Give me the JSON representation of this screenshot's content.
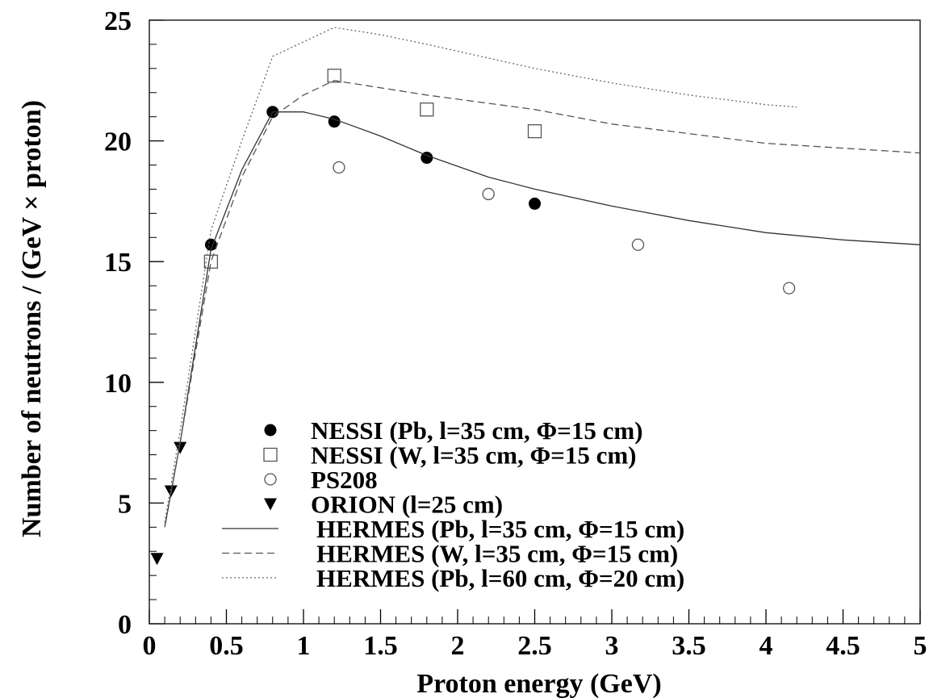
{
  "chart_data": {
    "type": "scatter",
    "xlabel": "Proton energy (GeV)",
    "ylabel": "Number of neutrons / (GeV × proton)",
    "xlim": [
      0,
      5
    ],
    "ylim": [
      0,
      25
    ],
    "x_ticks": [
      0,
      0.5,
      1,
      1.5,
      2,
      2.5,
      3,
      3.5,
      4,
      4.5,
      5
    ],
    "x_tick_labels": [
      "0",
      "0.5",
      "1",
      "1.5",
      "2",
      "2.5",
      "3",
      "3.5",
      "4",
      "4.5",
      "5"
    ],
    "y_ticks": [
      0,
      5,
      10,
      15,
      20,
      25
    ],
    "y_tick_labels": [
      "0",
      "5",
      "10",
      "15",
      "20",
      "25"
    ],
    "grid": false,
    "legend_position": "bottom-center",
    "series": [
      {
        "name": "NESSI (Pb, l=35 cm, Φ=15 cm)",
        "kind": "marker",
        "marker": "filled-circle",
        "points": [
          [
            0.4,
            15.7
          ],
          [
            0.8,
            21.2
          ],
          [
            1.2,
            20.8
          ],
          [
            1.8,
            19.3
          ],
          [
            2.5,
            17.4
          ]
        ]
      },
      {
        "name": "NESSI (W, l=35 cm, Φ=15 cm)",
        "kind": "marker",
        "marker": "open-square",
        "points": [
          [
            0.4,
            15.0
          ],
          [
            1.2,
            22.7
          ],
          [
            1.8,
            21.3
          ],
          [
            2.5,
            20.4
          ]
        ]
      },
      {
        "name": "PS208",
        "kind": "marker",
        "marker": "open-circle",
        "points": [
          [
            1.23,
            18.9
          ],
          [
            2.2,
            17.8
          ],
          [
            3.17,
            15.7
          ],
          [
            4.15,
            13.9
          ]
        ]
      },
      {
        "name": "ORION (l=25 cm)",
        "kind": "marker",
        "marker": "filled-triangle-down",
        "points": [
          [
            0.05,
            2.7
          ],
          [
            0.14,
            5.5
          ],
          [
            0.2,
            7.3
          ]
        ]
      },
      {
        "name": "HERMES (Pb, l=35 cm, Φ=15 cm)",
        "kind": "line",
        "dash": "solid",
        "points": [
          [
            0.1,
            4.0
          ],
          [
            0.2,
            7.5
          ],
          [
            0.4,
            15.5
          ],
          [
            0.6,
            18.8
          ],
          [
            0.8,
            21.2
          ],
          [
            1.0,
            21.2
          ],
          [
            1.2,
            20.9
          ],
          [
            1.5,
            20.2
          ],
          [
            1.8,
            19.4
          ],
          [
            2.2,
            18.5
          ],
          [
            2.5,
            18.0
          ],
          [
            3.0,
            17.3
          ],
          [
            3.5,
            16.7
          ],
          [
            4.0,
            16.2
          ],
          [
            4.5,
            15.9
          ],
          [
            5.0,
            15.7
          ]
        ]
      },
      {
        "name": "HERMES (W, l=35 cm, Φ=15 cm)",
        "kind": "line",
        "dash": "dashed",
        "points": [
          [
            0.1,
            4.0
          ],
          [
            0.2,
            7.5
          ],
          [
            0.4,
            15.0
          ],
          [
            0.6,
            18.5
          ],
          [
            0.8,
            21.0
          ],
          [
            1.0,
            21.9
          ],
          [
            1.2,
            22.5
          ],
          [
            1.5,
            22.2
          ],
          [
            1.8,
            21.9
          ],
          [
            2.5,
            21.3
          ],
          [
            3.0,
            20.7
          ],
          [
            3.5,
            20.3
          ],
          [
            4.0,
            19.9
          ],
          [
            4.5,
            19.7
          ],
          [
            5.0,
            19.5
          ]
        ]
      },
      {
        "name": "HERMES (Pb, l=60 cm, Φ=20 cm)",
        "kind": "line",
        "dash": "dotted",
        "points": [
          [
            0.1,
            4.2
          ],
          [
            0.2,
            8.0
          ],
          [
            0.4,
            16.3
          ],
          [
            0.6,
            20.0
          ],
          [
            0.8,
            23.5
          ],
          [
            1.0,
            24.1
          ],
          [
            1.2,
            24.7
          ],
          [
            1.5,
            24.4
          ],
          [
            1.8,
            24.0
          ],
          [
            2.5,
            23.0
          ],
          [
            3.0,
            22.4
          ],
          [
            3.5,
            21.9
          ],
          [
            4.0,
            21.5
          ],
          [
            4.2,
            21.4
          ]
        ]
      }
    ]
  }
}
